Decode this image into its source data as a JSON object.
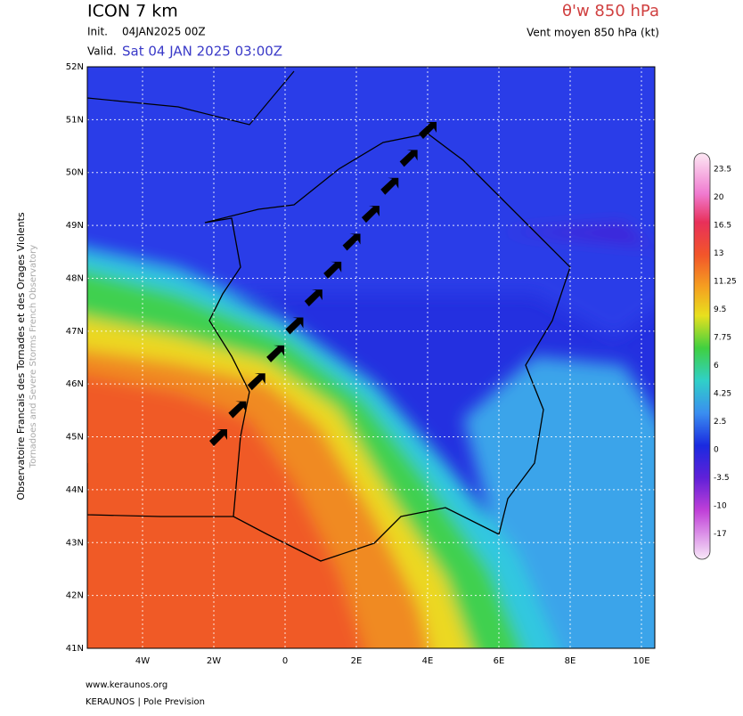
{
  "header": {
    "model": "ICON 7 km",
    "init_label": "Init.",
    "init": "04JAN2025 00Z",
    "valid_label": "Valid.",
    "valid": "Sat 04 JAN 2025 03:00Z",
    "parameter": "θ'w 850 hPa",
    "subtitle": "Vent moyen 850 hPa (kt)"
  },
  "map": {
    "lat_labels": [
      "52N",
      "51N",
      "50N",
      "49N",
      "48N",
      "47N",
      "46N",
      "45N",
      "44N",
      "43N",
      "42N",
      "41N"
    ],
    "lon_labels": [
      "4W",
      "2W",
      "0",
      "2E",
      "4E",
      "6E",
      "8E",
      "10E"
    ]
  },
  "colorbar": {
    "labels": [
      "23.5",
      "20",
      "16.5",
      "13",
      "11.25",
      "9.5",
      "7.75",
      "6",
      "4.25",
      "2.5",
      "0",
      "-3.5",
      "-10",
      "-17"
    ]
  },
  "side": {
    "fr": "Observatoire Francais des Tornades et des Orages Violents",
    "en": "Tornadoes and Severe Storms French Observatory"
  },
  "footer": {
    "site": "www.keraunos.org",
    "company": "KERAUNOS | Pole Prevision"
  }
}
